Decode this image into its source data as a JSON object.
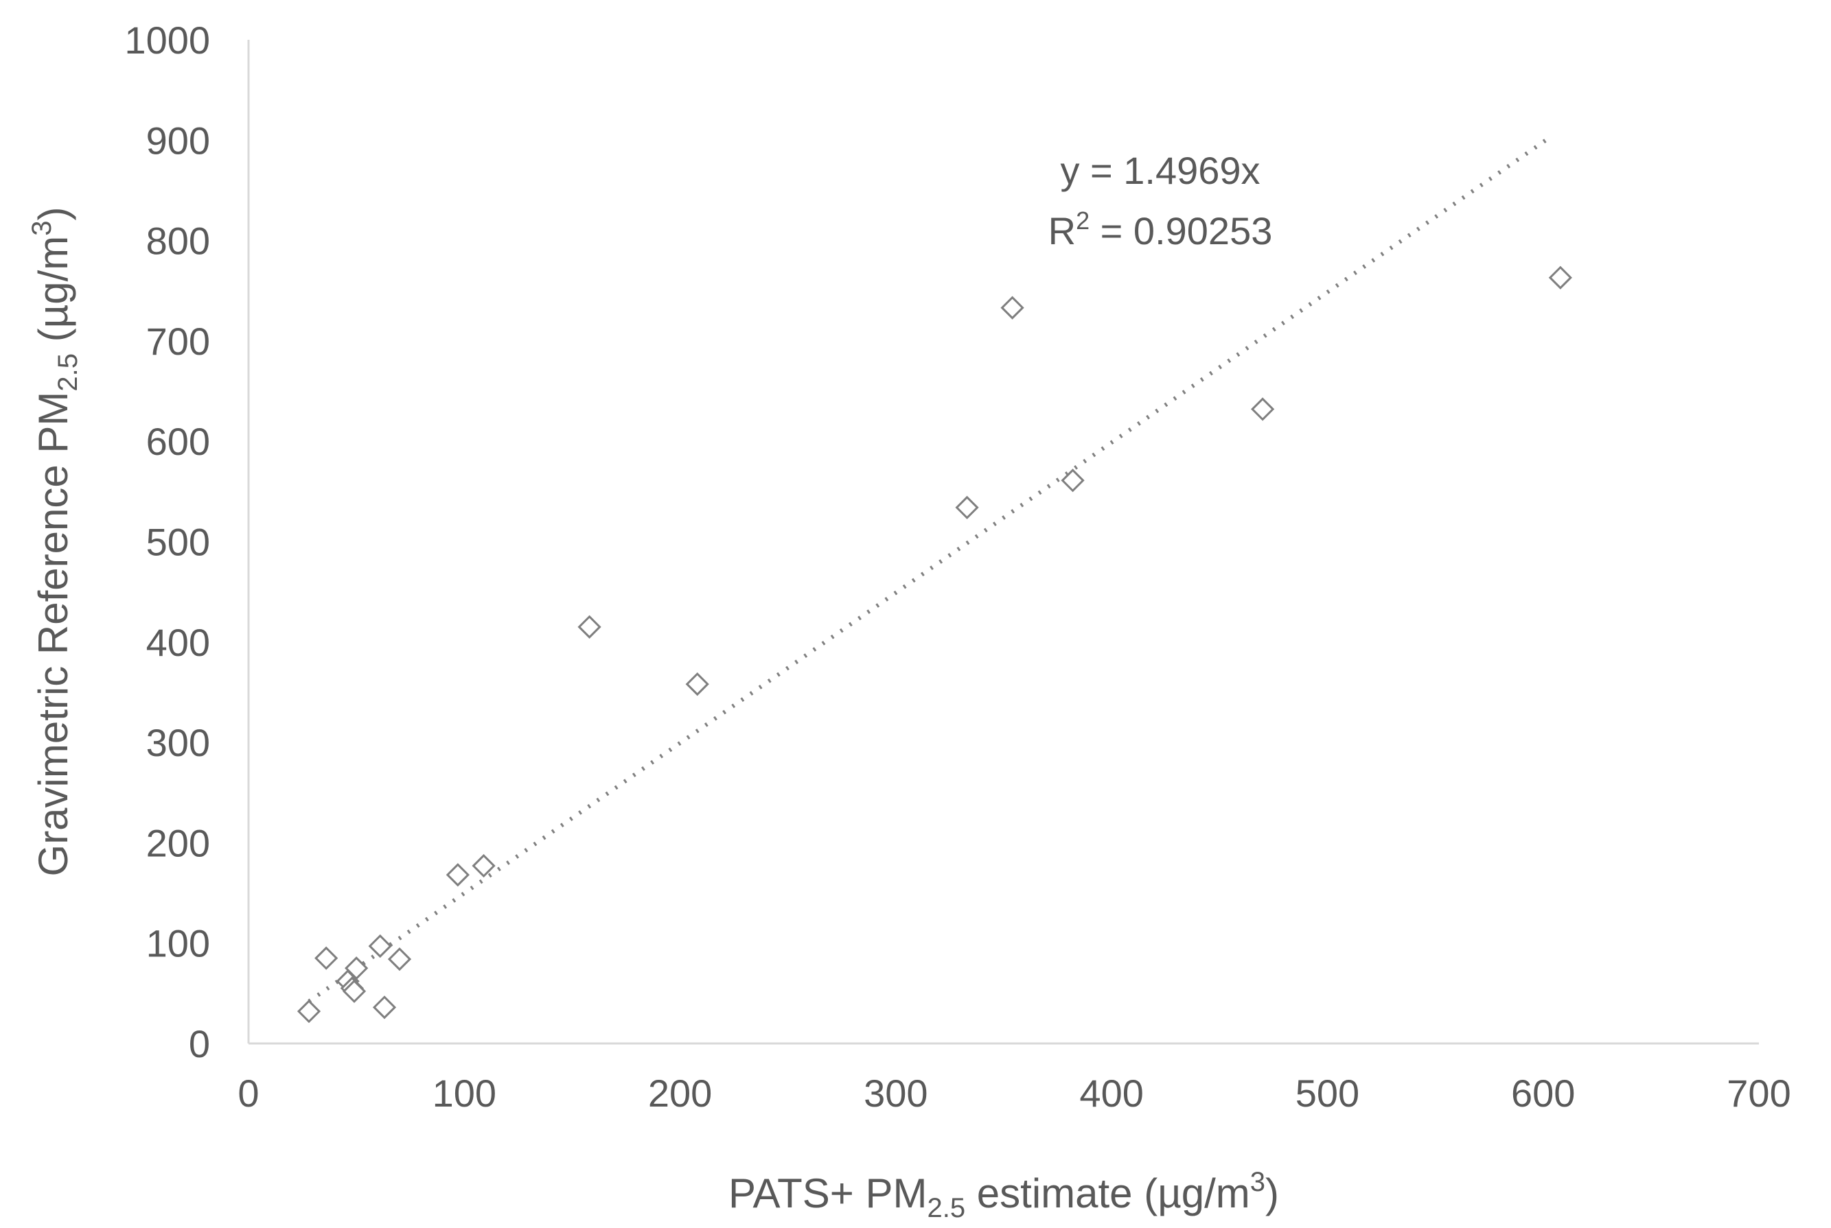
{
  "chart_data": {
    "type": "scatter",
    "xlabel": {
      "prefix": "PATS+ PM",
      "subscript": "2.5",
      "suffix": " estimate (µg/m",
      "superscript": "3",
      "end": ")"
    },
    "ylabel": {
      "prefix": "Gravimetric Reference PM",
      "subscript": "2.5",
      "suffix": " (µg/m",
      "superscript": "3",
      "end": ")"
    },
    "xlim": [
      0,
      700
    ],
    "ylim": [
      0,
      1000
    ],
    "xticks": [
      "0",
      "100",
      "200",
      "300",
      "400",
      "500",
      "600",
      "700"
    ],
    "yticks": [
      "0",
      "100",
      "200",
      "300",
      "400",
      "500",
      "600",
      "700",
      "800",
      "900",
      "1000"
    ],
    "grid": false,
    "marker": "diamond-open",
    "colors": {
      "axis": "#d9d9d9",
      "text": "#595959",
      "marker": "#7f7f7f",
      "trendline": "#808080"
    },
    "points": [
      {
        "x": 28,
        "y": 32
      },
      {
        "x": 36,
        "y": 85
      },
      {
        "x": 46,
        "y": 62
      },
      {
        "x": 48,
        "y": 55
      },
      {
        "x": 49,
        "y": 52
      },
      {
        "x": 50,
        "y": 75
      },
      {
        "x": 61,
        "y": 97
      },
      {
        "x": 63,
        "y": 36
      },
      {
        "x": 70,
        "y": 84
      },
      {
        "x": 97,
        "y": 168
      },
      {
        "x": 109,
        "y": 177
      },
      {
        "x": 158,
        "y": 415
      },
      {
        "x": 208,
        "y": 358
      },
      {
        "x": 333,
        "y": 534
      },
      {
        "x": 354,
        "y": 733
      },
      {
        "x": 382,
        "y": 561
      },
      {
        "x": 470,
        "y": 632
      },
      {
        "x": 608,
        "y": 763
      }
    ],
    "trendline": {
      "style": "dotted",
      "slope": 1.4969,
      "x_range": [
        28,
        603
      ],
      "equation_text": "y = 1.4969x",
      "r2_label": "R",
      "r2_superscript": "2",
      "r2_value_text": " = 0.90253"
    }
  }
}
